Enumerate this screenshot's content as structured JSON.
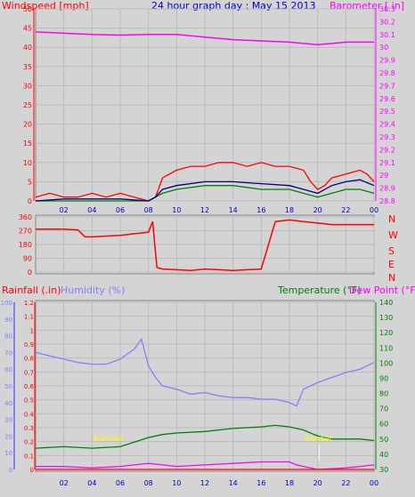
{
  "header": {
    "title": "24 hour graph day : May 15 2013",
    "wind_label": "Windspeed [mph]",
    "baro_label": "Barometer [.in]"
  },
  "bottom_header": {
    "rain_label": "Rainfall (.in)",
    "humidity_label": "Humidity (%)",
    "temp_label": "Temperature (°F)",
    "dew_label": "Dew Point (°F)"
  },
  "annotations": {
    "sunrise": "Sunrise",
    "sunset": "Sunset"
  },
  "compass": [
    "N",
    "W",
    "S",
    "E",
    "N"
  ],
  "colors": {
    "background": "#d4d4d4",
    "grid": "#bbbbbb",
    "wind_gust": "#ff0000",
    "wind_avg": "#008000",
    "wind_avg_line": "#00007f",
    "barometer": "#ff00ff",
    "humidity": "#8080ff",
    "temperature": "#008000",
    "dew_point": "#ff00ff",
    "rainfall": "#ff0000",
    "title": "#0000cc",
    "annotation": "#ffff00"
  },
  "chart_data": [
    {
      "type": "line",
      "id": "wind-baro",
      "title": "24 hour graph day : May 15 2013",
      "xlabel": "",
      "x_ticks": [
        "02",
        "04",
        "06",
        "08",
        "10",
        "12",
        "14",
        "16",
        "18",
        "20",
        "22",
        "00"
      ],
      "xlim": [
        0,
        24
      ],
      "y_left": {
        "label": "Windspeed [mph]",
        "range": [
          0,
          50
        ],
        "ticks": [
          0,
          5,
          10,
          15,
          20,
          25,
          30,
          35,
          40,
          45,
          50
        ]
      },
      "y_right": {
        "label": "Barometer [.in]",
        "range": [
          28.8,
          30.3
        ],
        "ticks": [
          "28.8",
          "28.9",
          "29",
          "29.1",
          "29.2",
          "29.3",
          "29.4",
          "29.5",
          "29.6",
          "29.7",
          "29.8",
          "29.9",
          "30",
          "30.1",
          "30.2",
          "30.3"
        ]
      },
      "series": [
        {
          "axis": "right",
          "color": "#ff00ff",
          "x": [
            0,
            2,
            4,
            6,
            8,
            10,
            12,
            14,
            16,
            18,
            19,
            20,
            21,
            22,
            24
          ],
          "y": [
            30.12,
            30.11,
            30.1,
            30.095,
            30.1,
            30.1,
            30.08,
            30.06,
            30.05,
            30.04,
            30.03,
            30.02,
            30.03,
            30.04,
            30.04
          ]
        },
        {
          "axis": "left",
          "color": "#ff0000",
          "x": [
            0,
            1,
            2,
            3,
            4,
            5,
            6,
            7,
            8,
            8.5,
            9,
            10,
            11,
            12,
            13,
            14,
            15,
            16,
            17,
            18,
            19,
            19.5,
            20,
            20.5,
            21,
            22,
            23,
            23.5,
            24
          ],
          "y": [
            1,
            2,
            1,
            1,
            2,
            1,
            2,
            1,
            0,
            1,
            6,
            8,
            9,
            9,
            10,
            10,
            9,
            10,
            9,
            9,
            8,
            5,
            3,
            4,
            6,
            7,
            8,
            7,
            5
          ]
        },
        {
          "axis": "left",
          "color": "#008000",
          "x": [
            0,
            2,
            4,
            6,
            8,
            8.5,
            9,
            10,
            12,
            14,
            16,
            18,
            19,
            20,
            21,
            22,
            23,
            24
          ],
          "y": [
            0,
            0,
            0,
            0,
            0,
            1,
            2,
            3,
            4,
            4,
            3,
            3,
            2,
            1,
            2,
            3,
            3,
            2
          ]
        },
        {
          "axis": "left",
          "color": "#00007f",
          "x": [
            0,
            2,
            4,
            6,
            8,
            8.5,
            9,
            10,
            12,
            14,
            16,
            18,
            19,
            20,
            21,
            22,
            23,
            24
          ],
          "y": [
            0,
            0.5,
            0.5,
            0.5,
            0,
            1,
            3,
            4,
            5,
            5,
            4.5,
            4,
            3,
            2,
            4,
            5,
            5.5,
            4
          ]
        }
      ]
    },
    {
      "type": "scatter",
      "id": "wind-direction",
      "xlim": [
        0,
        24
      ],
      "y_left": {
        "range": [
          0,
          360
        ],
        "ticks": [
          0,
          90,
          180,
          270,
          360
        ]
      },
      "y_right_labels": [
        "N",
        "W",
        "S",
        "E",
        "N"
      ],
      "series": [
        {
          "color": "#ff0000",
          "x": [
            0,
            2,
            3,
            3.5,
            4,
            6,
            7,
            8,
            8.3,
            8.6,
            9,
            10,
            11,
            12,
            13,
            14,
            15,
            16,
            17,
            18,
            19,
            20,
            21,
            22,
            24
          ],
          "y": [
            280,
            280,
            275,
            230,
            230,
            240,
            250,
            260,
            330,
            30,
            20,
            15,
            10,
            20,
            15,
            10,
            15,
            20,
            330,
            340,
            330,
            320,
            310,
            310,
            310
          ]
        }
      ]
    },
    {
      "type": "line",
      "id": "rain-hum-temp",
      "xlim": [
        0,
        24
      ],
      "x_ticks": [
        "02",
        "04",
        "06",
        "08",
        "10",
        "12",
        "14",
        "16",
        "18",
        "20",
        "22",
        "00"
      ],
      "y_left_rain": {
        "label": "Rainfall (.in)",
        "range": [
          0,
          1.2
        ],
        "ticks": [
          "0",
          "0.1",
          "0.2",
          "0.3",
          "0.4",
          "0.5",
          "0.6",
          "0.7",
          "0.8",
          "0.9",
          "1",
          "1.1",
          "1.2"
        ]
      },
      "y_left_hum": {
        "label": "Humidity (%)",
        "range": [
          0,
          100
        ],
        "ticks": [
          0,
          10,
          20,
          30,
          40,
          50,
          60,
          70,
          80,
          90,
          100
        ]
      },
      "y_right": {
        "label": "Temperature (°F)",
        "range": [
          30,
          140
        ],
        "ticks": [
          30,
          40,
          50,
          60,
          70,
          80,
          90,
          100,
          110,
          120,
          130,
          140
        ]
      },
      "series": [
        {
          "name": "Humidity (%)",
          "axis": "hum",
          "color": "#8080ff",
          "x": [
            0,
            1,
            2,
            3,
            4,
            5,
            6,
            7,
            7.5,
            8,
            8.5,
            9,
            10,
            11,
            12,
            13,
            14,
            15,
            16,
            17,
            18,
            18.5,
            19,
            20,
            21,
            22,
            23,
            24
          ],
          "y": [
            70,
            68,
            66,
            64,
            63,
            63,
            66,
            72,
            78,
            62,
            55,
            50,
            48,
            45,
            46,
            44,
            43,
            43,
            42,
            42,
            40,
            38,
            48,
            52,
            55,
            58,
            60,
            64
          ]
        },
        {
          "name": "Temperature (°F)",
          "axis": "temp",
          "color": "#008000",
          "x": [
            0,
            2,
            4,
            6,
            7,
            8,
            9,
            10,
            12,
            14,
            16,
            17,
            18,
            19,
            20,
            21,
            22,
            23,
            24
          ],
          "y": [
            44,
            45,
            44,
            45,
            48,
            51,
            53,
            54,
            55,
            57,
            58,
            59,
            58,
            56,
            52,
            50,
            50,
            50,
            49
          ]
        },
        {
          "name": "Dew Point (°F)",
          "axis": "temp",
          "color": "#ff00ff",
          "x": [
            0,
            2,
            4,
            6,
            7,
            8,
            9,
            10,
            12,
            14,
            16,
            17,
            18,
            18.5,
            19,
            20,
            22,
            23,
            24
          ],
          "y": [
            32,
            32,
            31,
            32,
            33,
            34,
            33,
            32,
            33,
            34,
            35,
            35,
            35,
            33,
            32,
            30,
            31,
            32,
            33
          ]
        },
        {
          "name": "Rainfall (.in)",
          "axis": "rain",
          "color": "#ff0000",
          "x": [
            0,
            24
          ],
          "y": [
            0,
            0
          ]
        }
      ],
      "annotations": [
        {
          "text": "Sunrise",
          "x": 5.2
        },
        {
          "text": "Sunset",
          "x": 20.1
        }
      ]
    }
  ]
}
